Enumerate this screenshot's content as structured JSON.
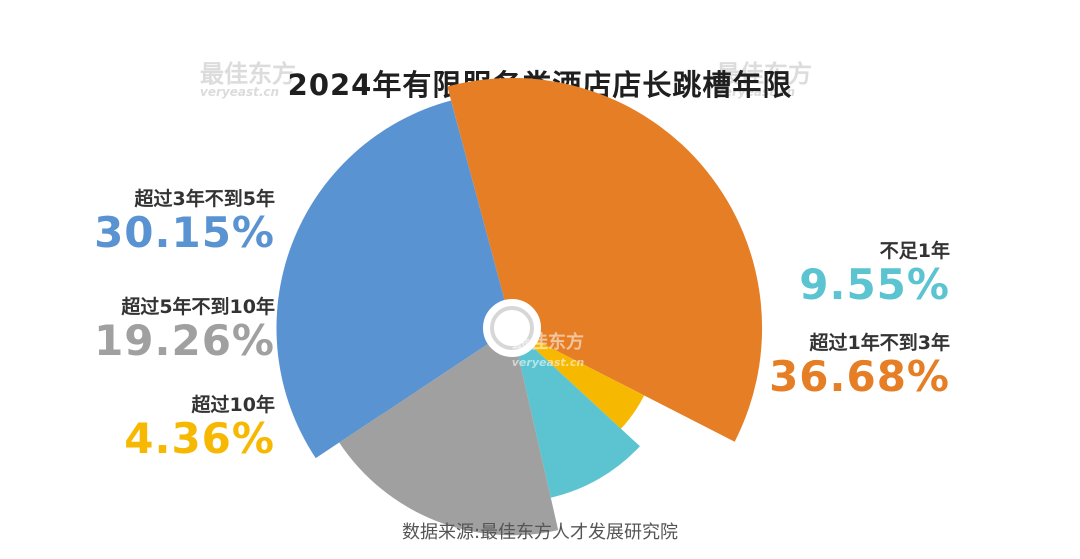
{
  "title": "2024年有限服务类酒店店长跳槽年限",
  "source": "数据来源:最佳东方人才发展研究院",
  "watermark": {
    "cn": "最佳东方",
    "en": "veryeast.cn"
  },
  "colors": {
    "orange": "#E57E25",
    "teal": "#5BC4D0",
    "blue": "#5A93D1",
    "gray": "#A0A0A0",
    "yellow": "#F6B800"
  },
  "chart_data": {
    "type": "pie",
    "variant": "rose",
    "title": "2024年有限服务类酒店店长跳槽年限",
    "unit": "%",
    "categories": [
      "超过1年不到3年",
      "超过3年不到5年",
      "超过5年不到10年",
      "不足1年",
      "超过10年"
    ],
    "values": [
      36.68,
      30.15,
      19.26,
      9.55,
      4.36
    ],
    "value_labels": [
      "36.68%",
      "30.15%",
      "19.26%",
      "9.55%",
      "4.36%"
    ],
    "colors": [
      "#E57E25",
      "#5A93D1",
      "#A0A0A0",
      "#5BC4D0",
      "#F6B800"
    ]
  },
  "labels": {
    "right": [
      {
        "category": "不足1年",
        "value": "9.55%",
        "color": "#5BC4D0"
      },
      {
        "category": "超过1年不到3年",
        "value": "36.68%",
        "color": "#E57E25"
      }
    ],
    "left": [
      {
        "category": "超过3年不到5年",
        "value": "30.15%",
        "color": "#5A93D1"
      },
      {
        "category": "超过5年不到10年",
        "value": "19.26%",
        "color": "#A0A0A0"
      },
      {
        "category": "超过10年",
        "value": "4.36%",
        "color": "#F6B800"
      }
    ]
  }
}
